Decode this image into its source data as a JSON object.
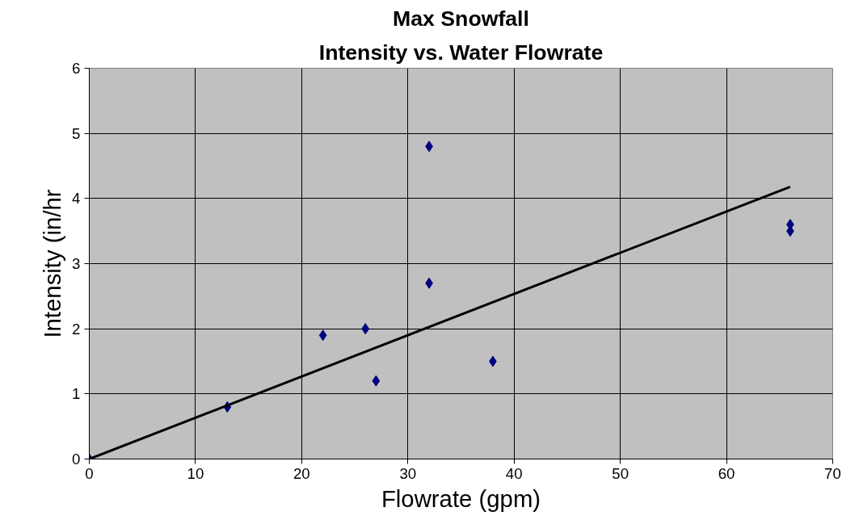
{
  "chart_data": {
    "type": "scatter",
    "title": "Max Snowfall",
    "subtitle": "Intensity vs. Water Flowrate",
    "xlabel": "Flowrate (gpm)",
    "ylabel": "Intensity (in/hr",
    "xlim": [
      0,
      70
    ],
    "xticks": [
      0,
      10,
      20,
      30,
      40,
      50,
      60,
      70
    ],
    "ylim": [
      0,
      6
    ],
    "yticks": [
      0,
      1,
      2,
      3,
      4,
      5,
      6
    ],
    "grid": true,
    "marker": "diamond",
    "series": [
      {
        "color": "#000080",
        "x": [
          0,
          13,
          22,
          26,
          27,
          32,
          32,
          38,
          66,
          66
        ],
        "values": [
          0,
          0.8,
          1.9,
          2.0,
          1.2,
          4.8,
          2.7,
          1.5,
          3.6,
          3.5
        ]
      },
      {
        "type": "line",
        "color": "#000000",
        "marker": "none",
        "line_style": "solid",
        "x": [
          0,
          66
        ],
        "values": [
          0,
          4.18
        ]
      }
    ]
  }
}
